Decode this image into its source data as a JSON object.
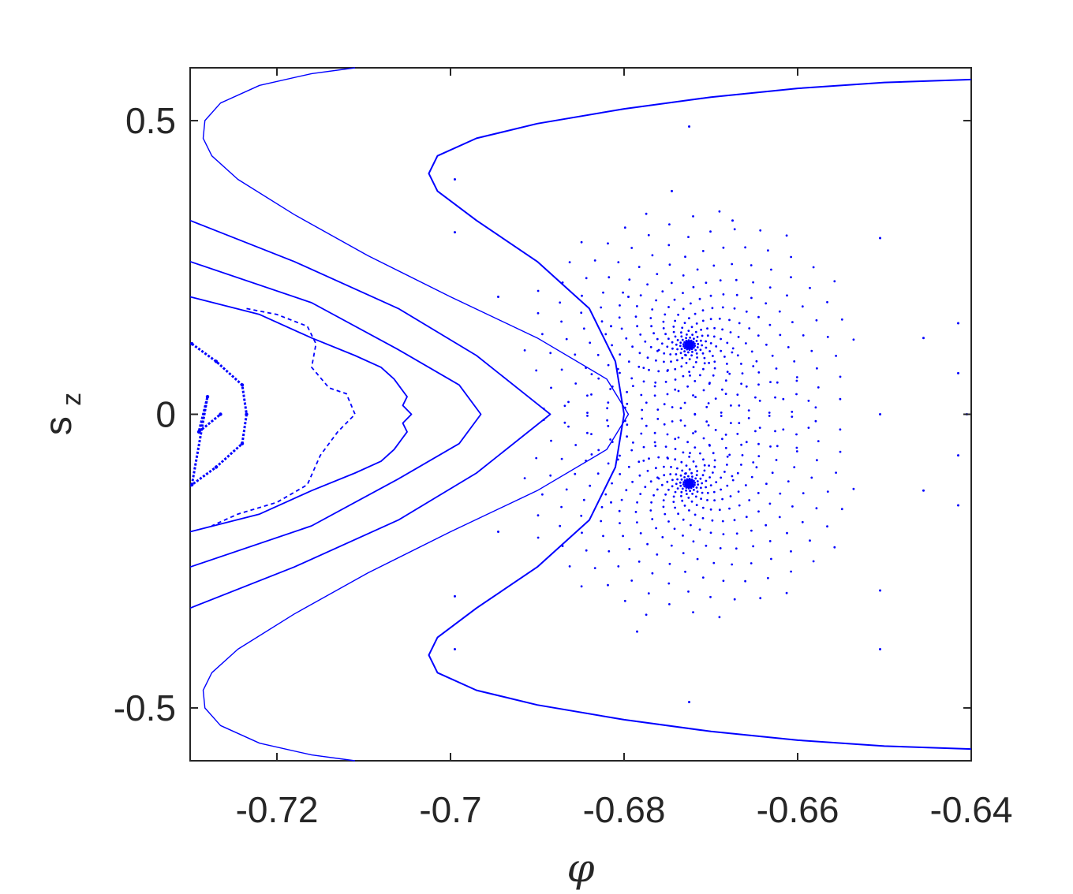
{
  "chart_data": {
    "type": "scatter",
    "title": "",
    "xlabel": "φ",
    "ylabel": "s",
    "ylabel_subscript": "z",
    "xlim": [
      -0.73,
      -0.64
    ],
    "ylim": [
      -0.59,
      0.59
    ],
    "xticks": [
      -0.72,
      -0.7,
      -0.68,
      -0.66,
      -0.64
    ],
    "xtick_labels": [
      "-0.72",
      "-0.7",
      "-0.68",
      "-0.66",
      "-0.64"
    ],
    "yticks": [
      -0.5,
      0,
      0.5
    ],
    "ytick_labels": [
      "-0.5",
      "0",
      "0.5"
    ],
    "grid": false,
    "legend": "none",
    "marker_color": "#0000ff",
    "series": [
      {
        "kind": "outer-arc",
        "points": [
          [
            -0.711,
            0.59
          ],
          [
            -0.716,
            0.58
          ],
          [
            -0.722,
            0.56
          ],
          [
            -0.7265,
            0.53
          ],
          [
            -0.7283,
            0.5
          ],
          [
            -0.7285,
            0.47
          ],
          [
            -0.7275,
            0.44
          ],
          [
            -0.7245,
            0.4
          ],
          [
            -0.718,
            0.34
          ],
          [
            -0.7095,
            0.27
          ],
          [
            -0.7,
            0.2
          ],
          [
            -0.69,
            0.13
          ],
          [
            -0.682,
            0.06
          ],
          [
            -0.6795,
            0.0
          ],
          [
            -0.682,
            -0.06
          ],
          [
            -0.69,
            -0.13
          ],
          [
            -0.7,
            -0.2
          ],
          [
            -0.7095,
            -0.27
          ],
          [
            -0.718,
            -0.34
          ],
          [
            -0.7245,
            -0.4
          ],
          [
            -0.7275,
            -0.44
          ],
          [
            -0.7285,
            -0.47
          ],
          [
            -0.7283,
            -0.5
          ],
          [
            -0.7265,
            -0.53
          ],
          [
            -0.722,
            -0.56
          ],
          [
            -0.716,
            -0.58
          ],
          [
            -0.711,
            -0.59
          ]
        ]
      },
      {
        "kind": "inner-arc",
        "points": [
          [
            -0.64,
            0.57
          ],
          [
            -0.65,
            0.565
          ],
          [
            -0.66,
            0.555
          ],
          [
            -0.67,
            0.54
          ],
          [
            -0.68,
            0.52
          ],
          [
            -0.69,
            0.495
          ],
          [
            -0.697,
            0.47
          ],
          [
            -0.7015,
            0.44
          ],
          [
            -0.7025,
            0.41
          ],
          [
            -0.7015,
            0.38
          ],
          [
            -0.697,
            0.33
          ],
          [
            -0.69,
            0.26
          ],
          [
            -0.684,
            0.18
          ],
          [
            -0.681,
            0.09
          ],
          [
            -0.68,
            0.0
          ],
          [
            -0.681,
            -0.09
          ],
          [
            -0.684,
            -0.18
          ],
          [
            -0.69,
            -0.26
          ],
          [
            -0.697,
            -0.33
          ],
          [
            -0.7015,
            -0.38
          ],
          [
            -0.7025,
            -0.41
          ],
          [
            -0.7015,
            -0.44
          ],
          [
            -0.697,
            -0.47
          ],
          [
            -0.69,
            -0.495
          ],
          [
            -0.68,
            -0.52
          ],
          [
            -0.67,
            -0.54
          ],
          [
            -0.66,
            -0.555
          ],
          [
            -0.65,
            -0.565
          ],
          [
            -0.64,
            -0.57
          ]
        ]
      },
      {
        "kind": "band",
        "points": [
          [
            -0.73,
            0.33
          ],
          [
            -0.718,
            0.26
          ],
          [
            -0.706,
            0.18
          ],
          [
            -0.697,
            0.1
          ],
          [
            -0.6885,
            0.0
          ],
          [
            -0.697,
            -0.1
          ],
          [
            -0.706,
            -0.18
          ],
          [
            -0.718,
            -0.26
          ],
          [
            -0.73,
            -0.33
          ]
        ]
      },
      {
        "kind": "band",
        "points": [
          [
            -0.73,
            0.26
          ],
          [
            -0.716,
            0.19
          ],
          [
            -0.706,
            0.11
          ],
          [
            -0.699,
            0.05
          ],
          [
            -0.6965,
            0.0
          ],
          [
            -0.699,
            -0.05
          ],
          [
            -0.706,
            -0.11
          ],
          [
            -0.716,
            -0.19
          ],
          [
            -0.73,
            -0.26
          ]
        ]
      },
      {
        "kind": "wavy-band",
        "points": [
          [
            -0.73,
            0.2
          ],
          [
            -0.722,
            0.17
          ],
          [
            -0.716,
            0.13
          ],
          [
            -0.711,
            0.1
          ],
          [
            -0.708,
            0.08
          ],
          [
            -0.7065,
            0.06
          ],
          [
            -0.705,
            0.03
          ],
          [
            -0.7055,
            0.015
          ],
          [
            -0.7045,
            0.0
          ],
          [
            -0.7055,
            -0.015
          ],
          [
            -0.705,
            -0.03
          ],
          [
            -0.7065,
            -0.06
          ],
          [
            -0.708,
            -0.08
          ],
          [
            -0.711,
            -0.1
          ],
          [
            -0.716,
            -0.13
          ],
          [
            -0.722,
            -0.17
          ],
          [
            -0.73,
            -0.2
          ]
        ]
      },
      {
        "kind": "chaotic-inner",
        "points": [
          [
            -0.7235,
            0.18
          ],
          [
            -0.72,
            0.17
          ],
          [
            -0.7165,
            0.15
          ],
          [
            -0.7155,
            0.12
          ],
          [
            -0.716,
            0.08
          ],
          [
            -0.714,
            0.045
          ],
          [
            -0.712,
            0.035
          ],
          [
            -0.711,
            0.0
          ],
          [
            -0.713,
            -0.03
          ],
          [
            -0.715,
            -0.07
          ],
          [
            -0.7165,
            -0.12
          ],
          [
            -0.72,
            -0.15
          ],
          [
            -0.7245,
            -0.17
          ],
          [
            -0.7275,
            -0.19
          ]
        ]
      },
      {
        "kind": "chaotic-core",
        "points": [
          [
            -0.7298,
            0.12
          ],
          [
            -0.727,
            0.09
          ],
          [
            -0.724,
            0.05
          ],
          [
            -0.7235,
            0.0
          ],
          [
            -0.724,
            -0.05
          ],
          [
            -0.727,
            -0.09
          ],
          [
            -0.7298,
            -0.12
          ],
          [
            -0.728,
            0.03
          ],
          [
            -0.729,
            -0.03
          ],
          [
            -0.7265,
            0.0
          ]
        ]
      },
      {
        "kind": "spiral-fixed-point",
        "center": [
          -0.6725,
          0.118
        ]
      },
      {
        "kind": "spiral-fixed-point",
        "center": [
          -0.6725,
          -0.118
        ]
      },
      {
        "kind": "sparse-points",
        "points": [
          [
            -0.6725,
            0.49
          ],
          [
            -0.6725,
            -0.49
          ],
          [
            -0.6995,
            0.4
          ],
          [
            -0.6995,
            -0.4
          ],
          [
            -0.6745,
            0.38
          ],
          [
            -0.6675,
            0.33
          ],
          [
            -0.6995,
            0.31
          ],
          [
            -0.6505,
            0.3
          ],
          [
            -0.6505,
            -0.3
          ],
          [
            -0.6415,
            0.155
          ],
          [
            -0.6415,
            -0.155
          ],
          [
            -0.6455,
            0.13
          ],
          [
            -0.6455,
            -0.13
          ],
          [
            -0.6505,
            0.0
          ],
          [
            -0.6415,
            0.07
          ],
          [
            -0.6415,
            -0.07
          ],
          [
            -0.6505,
            -0.4
          ],
          [
            -0.6995,
            -0.31
          ],
          [
            -0.6785,
            -0.37
          ],
          [
            -0.6795,
            0.2
          ],
          [
            -0.6945,
            0.2
          ],
          [
            -0.6945,
            -0.2
          ],
          [
            -0.6815,
            0.15
          ],
          [
            -0.6815,
            -0.15
          ],
          [
            -0.6405,
            0.0
          ]
        ]
      }
    ]
  }
}
